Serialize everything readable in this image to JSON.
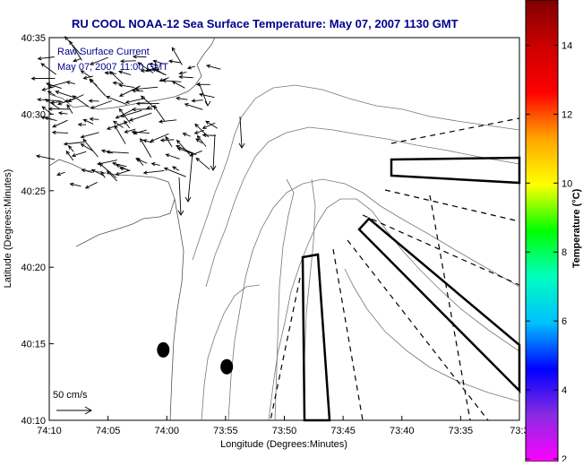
{
  "chart_data": {
    "type": "heatmap",
    "title": "RU COOL  NOAA-12  Sea Surface Temperature:  May 07, 2007 1130 GMT",
    "xlabel": "Longitude (Degrees:Minutes)",
    "ylabel": "Latitude (Degrees:Minutes)",
    "x_ticks": [
      {
        "label": "74:10",
        "minutes": 0
      },
      {
        "label": "74:05",
        "minutes": 5
      },
      {
        "label": "74:00",
        "minutes": 10
      },
      {
        "label": "73:55",
        "minutes": 15
      },
      {
        "label": "73:50",
        "minutes": 20
      },
      {
        "label": "73:45",
        "minutes": 25
      },
      {
        "label": "73:40",
        "minutes": 30
      },
      {
        "label": "73:35",
        "minutes": 35
      },
      {
        "label": "73:3",
        "minutes": 40
      }
    ],
    "y_ticks": [
      {
        "label": "40:35",
        "minutes": 35
      },
      {
        "label": "40:30",
        "minutes": 30
      },
      {
        "label": "40:25",
        "minutes": 25
      },
      {
        "label": "40:20",
        "minutes": 20
      },
      {
        "label": "40:15",
        "minutes": 15
      },
      {
        "label": "40:10",
        "minutes": 10
      }
    ],
    "colorbar": {
      "label": "Temperature (°C)",
      "min": 2,
      "max": 15,
      "ticks": [
        "14",
        "12",
        "10",
        "8",
        "6",
        "4",
        "2"
      ],
      "stops": [
        "#ff00ff",
        "#8a2be2",
        "#0000ff",
        "#00bfff",
        "#00ffbf",
        "#00ff00",
        "#ffff00",
        "#ffa500",
        "#ff0000",
        "#cc0000",
        "#800000"
      ]
    },
    "annotations": {
      "currents_label": "Raw Surface Current",
      "currents_time": "May 07, 2007 11:00 GMT",
      "scale_label": "50 cm/s"
    },
    "markers": [
      {
        "name": "station-1",
        "lon_min": 9.7,
        "lat_min": 14.6
      },
      {
        "name": "station-2",
        "lon_min": 15.1,
        "lat_min": 13.5
      }
    ],
    "colors": {
      "title": "#00008b",
      "annotation": "#00008b",
      "frame": "#000000",
      "contour": "#777777"
    }
  }
}
